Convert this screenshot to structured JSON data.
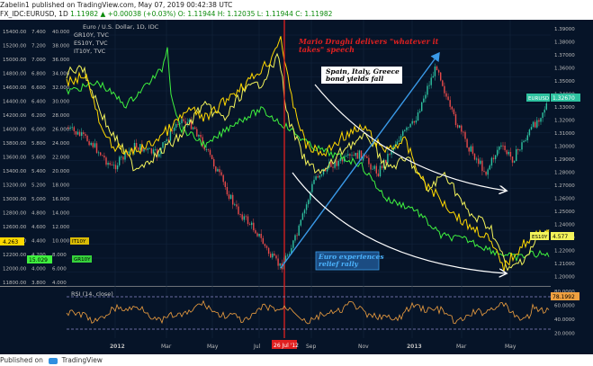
{
  "header": {
    "author": "Zabelin1",
    "published": "published on TradingView.com, May 07, 2019 00:42:38 UTC",
    "symbol": "FX_IDC:EURUSD, 1D",
    "price": "1.11982",
    "change": "▲ +0.00038 (+0.03%)",
    "ohlc": "O: 1.11944  H: 1.12035  L: 1.11944  C: 1.11982"
  },
  "legend": {
    "main": "Euro / U.S. Dollar, 1D, IDC",
    "items": [
      "GR10Y, TVC",
      "ES10Y, TVC",
      "IT10Y, TVC"
    ]
  },
  "annotations": {
    "draghi": "Mario Draghi delivers \"whatever it takes\" speech",
    "yields": "Spain, Italy, Greece bond yields fall",
    "euro": "Euro experiences relief rally",
    "date_tag": "26 Jul '12"
  },
  "rsi": {
    "label": "RSI (14, close)",
    "last_value": "78.1992"
  },
  "x_labels": [
    "2012",
    "Mar",
    "May",
    "Jul",
    "Sep",
    "Nov",
    "2013",
    "Mar",
    "May"
  ],
  "scale_left1": [
    "15400.00",
    "15200.00",
    "15000.00",
    "14800.00",
    "14600.00",
    "14400.00",
    "14200.00",
    "14000.00",
    "13800.00",
    "13600.00",
    "13400.00",
    "13200.00",
    "13000.00",
    "12800.00",
    "12600.00",
    "12400.00",
    "12200.00",
    "12000.00",
    "11800.00"
  ],
  "scale_left2": [
    "7.400",
    "7.200",
    "7.000",
    "6.800",
    "6.600",
    "6.400",
    "6.200",
    "6.000",
    "5.800",
    "5.600",
    "5.400",
    "5.200",
    "5.000",
    "4.800",
    "4.600",
    "4.400",
    "4.200",
    "4.000",
    "3.800"
  ],
  "scale_left3": [
    "40.000",
    "38.000",
    "36.000",
    "34.000",
    "32.000",
    "30.000",
    "28.000",
    "26.000",
    "24.000",
    "22.000",
    "20.000",
    "18.000",
    "16.000",
    "14.000",
    "12.000",
    "10.000",
    "8.000",
    "6.000",
    "4.000"
  ],
  "scale_right": [
    "1.39000",
    "1.38000",
    "1.37000",
    "1.36000",
    "1.35000",
    "1.34000",
    "1.33000",
    "1.32000",
    "1.31000",
    "1.30000",
    "1.29000",
    "1.28000",
    "1.27000",
    "1.26000",
    "1.25000",
    "1.24000",
    "1.23000",
    "1.22000",
    "1.21000",
    "1.20000"
  ],
  "rsi_scale": [
    "80.0000",
    "60.0000",
    "40.0000",
    "20.0000"
  ],
  "badges": {
    "eurusd": "EURUSD",
    "eurusd_value": "1.32670",
    "es10y": "ES10Y",
    "es10y_value": "4.577",
    "it10y_value": "4.263",
    "it10y": "IT10Y",
    "gr10y_value": "15.029",
    "gr10y": "GR10Y"
  },
  "colors": {
    "plot_bg": "#061428",
    "up_candle": "#2ec2a0",
    "down_candle": "#e84a4a",
    "it10y": "#ffd800",
    "es10y": "#f3f35a",
    "gr10y": "#3ff23f",
    "draghi_line": "#e02020",
    "trend_arrow": "#3a9ae8",
    "rsi_line": "#f0a040"
  },
  "footer": {
    "prefix": "Published on",
    "brand": "TradingView"
  }
}
